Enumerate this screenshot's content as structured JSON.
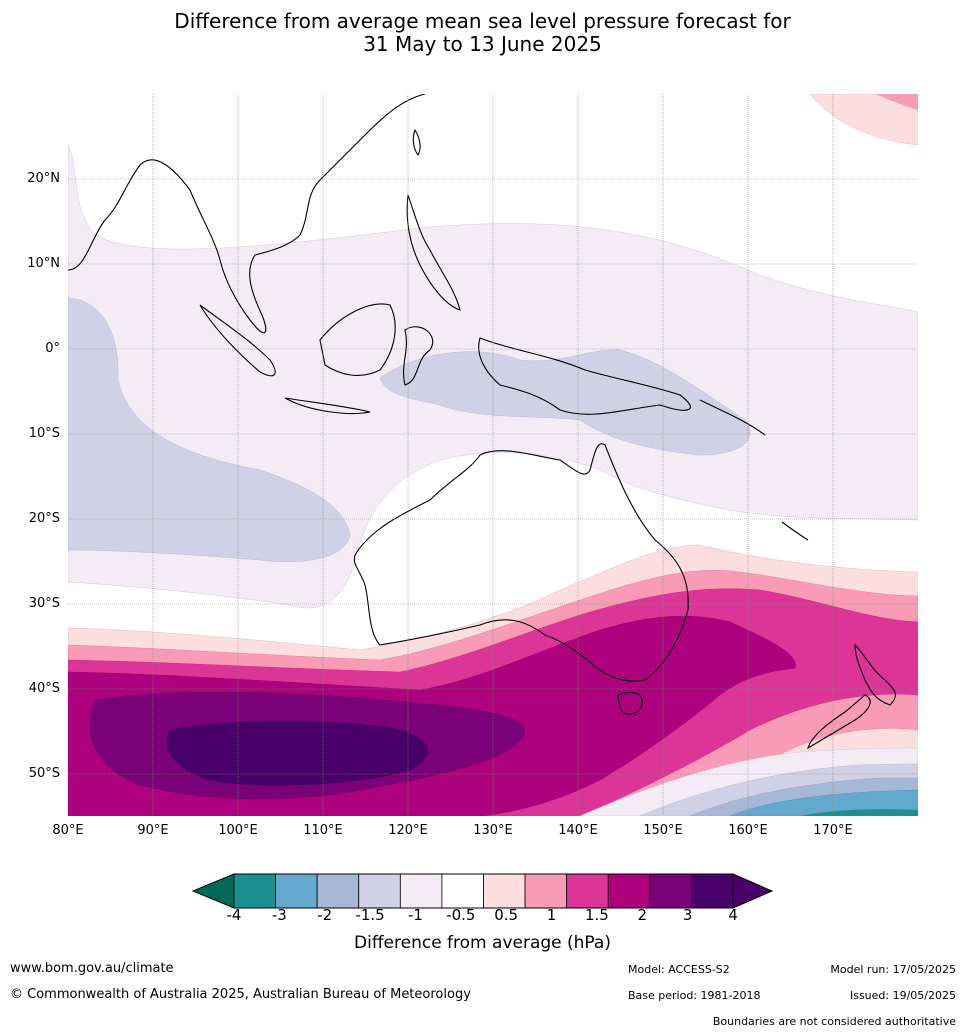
{
  "header": {
    "title_line1": "Difference from average mean sea level pressure forecast for",
    "title_line2": "31 May to 13 June 2025"
  },
  "map": {
    "lat_labels": [
      "20°N",
      "10°N",
      "0°",
      "10°S",
      "20°S",
      "30°S",
      "40°S",
      "50°S"
    ],
    "lon_labels": [
      "80°E",
      "90°E",
      "100°E",
      "110°E",
      "120°E",
      "130°E",
      "140°E",
      "150°E",
      "160°E",
      "170°E"
    ]
  },
  "legend": {
    "title": "Difference from average (hPa)",
    "ticks": [
      "-4",
      "-3",
      "-2",
      "-1.5",
      "-1",
      "-0.5",
      "0.5",
      "1",
      "1.5",
      "2",
      "3",
      "4"
    ],
    "colors": [
      "#1a9090",
      "#63a9cf",
      "#a7b8d6",
      "#d0d1e6",
      "#f3ecf5",
      "#ffffff",
      "#fddedf",
      "#f99bb6",
      "#dd3497",
      "#ae017e",
      "#7a0177",
      "#49006a"
    ],
    "under_color": "#006a57",
    "over_color": "#49006a"
  },
  "footer": {
    "website": "www.bom.gov.au/climate",
    "copyright": "© Commonwealth of Australia 2025, Australian Bureau of Meteorology",
    "model": "Model: ACCESS-S2",
    "base_period": "Base period: 1981-2018",
    "model_run": "Model run: 17/05/2025",
    "issued": "Issued: 19/05/2025",
    "boundaries_note": "Boundaries are not considered authoritative"
  }
}
